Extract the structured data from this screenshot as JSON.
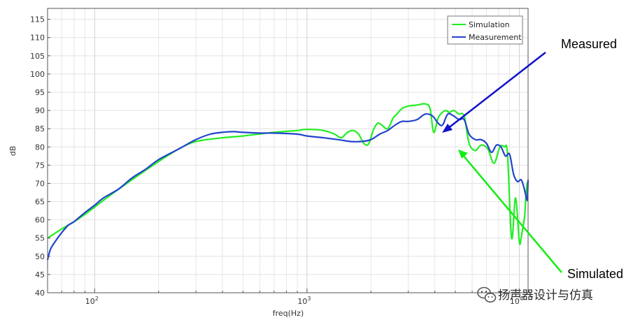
{
  "chart_data": {
    "type": "line",
    "xlabel": "freq(Hz)",
    "ylabel": "dB",
    "xscale": "log",
    "xlim": [
      60,
      11000
    ],
    "ylim": [
      40,
      118
    ],
    "grid": true,
    "legend_position": "top-right",
    "x_ticks": [
      {
        "value": 100,
        "base": "10",
        "exp": "2"
      },
      {
        "value": 1000,
        "base": "10",
        "exp": "3"
      },
      {
        "value": 10000,
        "base": "10",
        "exp": "4"
      }
    ],
    "y_ticks": [
      40,
      45,
      50,
      55,
      60,
      65,
      70,
      75,
      80,
      85,
      90,
      95,
      100,
      105,
      110,
      115
    ],
    "series": [
      {
        "name": "Simulation",
        "color": "#22ee22",
        "x": [
          60,
          70,
          80,
          90,
          100,
          120,
          150,
          200,
          250,
          300,
          400,
          500,
          700,
          900,
          1000,
          1200,
          1350,
          1450,
          1550,
          1650,
          1750,
          1850,
          1950,
          2050,
          2150,
          2250,
          2400,
          2550,
          2650,
          2800,
          3000,
          3300,
          3600,
          3800,
          3950,
          4150,
          4350,
          4500,
          4700,
          4900,
          5200,
          5500,
          5800,
          6200,
          6600,
          7100,
          7600,
          8100,
          8500,
          8800,
          9200,
          9600,
          10000,
          10200,
          10400,
          10600,
          10700,
          10800,
          10900,
          11000
        ],
        "y": [
          55,
          57.5,
          59.5,
          61.5,
          63.5,
          67,
          71,
          76,
          79.5,
          81.5,
          82.5,
          83,
          84,
          84.5,
          84.8,
          84.5,
          83.5,
          82.5,
          84,
          84.5,
          83.5,
          81,
          80.8,
          84.5,
          86.5,
          86,
          85,
          88,
          89,
          90.5,
          91.2,
          91.5,
          91.8,
          90.5,
          84,
          88,
          89.5,
          90,
          89.5,
          90,
          89,
          88.5,
          81,
          79,
          80.5,
          79.5,
          75.5,
          80,
          80,
          78,
          55,
          66,
          54,
          55,
          58,
          61,
          65,
          68,
          70,
          70.5
        ]
      },
      {
        "name": "Measurement",
        "color": "#2244cc",
        "x": [
          60,
          62,
          66,
          70,
          75,
          80,
          90,
          100,
          110,
          130,
          150,
          175,
          200,
          250,
          300,
          350,
          400,
          450,
          500,
          600,
          700,
          900,
          1000,
          1200,
          1400,
          1600,
          1800,
          2000,
          2200,
          2400,
          2600,
          2800,
          3000,
          3300,
          3600,
          3900,
          4150,
          4350,
          4600,
          4900,
          5200,
          5500,
          5800,
          6200,
          6600,
          7000,
          7400,
          7800,
          8200,
          8600,
          9000,
          9400,
          9800,
          10200,
          10500,
          10700,
          10900,
          11000
        ],
        "y": [
          49,
          52,
          54.5,
          56.5,
          58.5,
          59.5,
          62,
          64,
          66,
          68.5,
          71.5,
          74,
          76.5,
          79.5,
          82,
          83.5,
          84,
          84.2,
          84,
          83.8,
          83.8,
          83.5,
          83,
          82.5,
          82,
          81.5,
          81.5,
          82,
          83.5,
          84.5,
          86,
          87,
          87,
          87.5,
          89,
          88.5,
          86.5,
          86,
          89,
          88.5,
          87.5,
          87.5,
          83.5,
          82,
          82,
          81,
          78.5,
          80.5,
          80,
          77.5,
          78,
          72.5,
          70.5,
          71,
          69,
          67,
          65.5,
          71
        ]
      }
    ],
    "annotations": [
      {
        "text": "Measured",
        "color": "#0000cc"
      },
      {
        "text": "Simulated",
        "color": "#00dd00"
      }
    ]
  },
  "watermark": {
    "text": "扬声器设计与仿真"
  }
}
